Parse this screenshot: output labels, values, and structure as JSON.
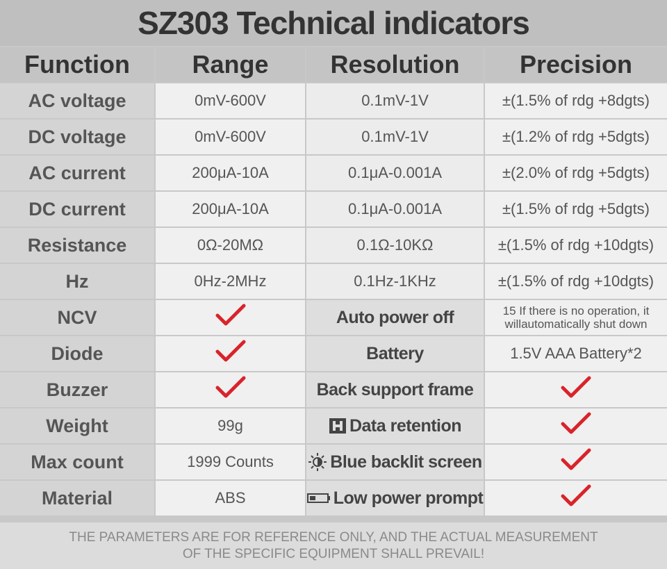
{
  "title": "SZ303 Technical indicators",
  "headers": [
    "Function",
    "Range",
    "Resolution",
    "Precision"
  ],
  "rows": [
    {
      "function": "AC voltage",
      "range": "0mV-600V",
      "resolution": "0.1mV-1V",
      "precision": "±(1.5% of rdg +8dgts)"
    },
    {
      "function": "DC voltage",
      "range": "0mV-600V",
      "resolution": "0.1mV-1V",
      "precision": "±(1.2% of rdg +5dgts)"
    },
    {
      "function": "AC current",
      "range": "200μA-10A",
      "resolution": "0.1μA-0.001A",
      "precision": "±(2.0% of rdg +5dgts)"
    },
    {
      "function": "DC current",
      "range": "200μA-10A",
      "resolution": "0.1μA-0.001A",
      "precision": "±(1.5% of rdg +5dgts)"
    },
    {
      "function": "Resistance",
      "range": "0Ω-20MΩ",
      "resolution": "0.1Ω-10KΩ",
      "precision": "±(1.5% of rdg +10dgts)"
    },
    {
      "function": "Hz",
      "range": "0Hz-2MHz",
      "resolution": "0.1Hz-1KHz",
      "precision": "±(1.5% of rdg +10dgts)"
    }
  ],
  "features": [
    {
      "function": "NCV",
      "range_check": true,
      "label": "Auto power off",
      "icon": "",
      "value_lines": [
        "15 If there is no operation, it",
        "willautomatically shut down"
      ]
    },
    {
      "function": "Diode",
      "range_check": true,
      "label": "Battery",
      "icon": "",
      "value": "1.5V AAA Battery*2"
    },
    {
      "function": "Buzzer",
      "range_check": true,
      "label": "Back support frame",
      "icon": "",
      "value_check": true
    },
    {
      "function": "Weight",
      "range": "99g",
      "label": "Data retention",
      "icon": "hold-icon",
      "value_check": true
    },
    {
      "function": "Max count",
      "range": "1999 Counts",
      "label": "Blue backlit screen",
      "icon": "sun-icon",
      "value_check": true
    },
    {
      "function": "Material",
      "range": "ABS",
      "label": "Low power prompt",
      "icon": "battery-icon",
      "value_check": true
    }
  ],
  "footer": {
    "line1": "THE PARAMETERS ARE FOR REFERENCE ONLY, AND THE ACTUAL MEASUREMENT",
    "line2": "OF THE SPECIFIC EQUIPMENT SHALL PREVAIL!"
  },
  "colors": {
    "check": "#d9232a",
    "text": "#555555",
    "header_text": "#333333",
    "footer_text": "#8a8a8a"
  }
}
